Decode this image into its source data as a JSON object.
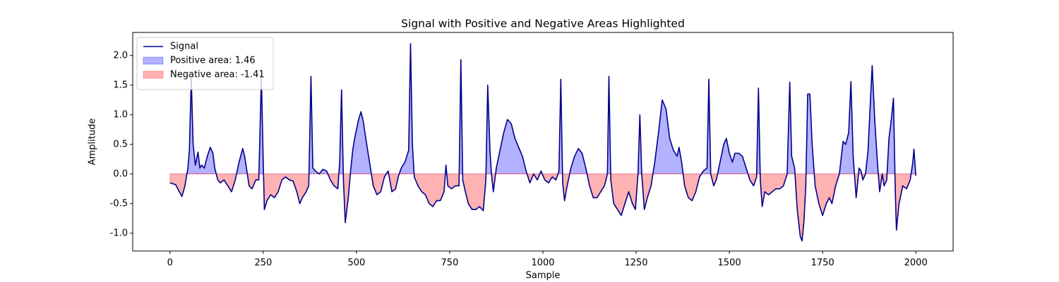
{
  "chart_data": {
    "type": "line",
    "title": "Signal with Positive and Negative Areas Highlighted",
    "x_label": "Sample",
    "y_label": "Amplitude",
    "x": [
      0,
      15,
      25,
      32,
      40,
      48,
      52,
      57,
      62,
      68,
      75,
      80,
      85,
      92,
      100,
      108,
      115,
      120,
      128,
      135,
      145,
      155,
      165,
      175,
      185,
      195,
      200,
      205,
      212,
      220,
      230,
      238,
      245,
      250,
      253,
      260,
      270,
      280,
      290,
      300,
      310,
      320,
      330,
      340,
      348,
      355,
      365,
      372,
      378,
      383,
      390,
      400,
      410,
      420,
      430,
      440,
      450,
      455,
      460,
      465,
      470,
      478,
      485,
      490,
      495,
      505,
      512,
      518,
      525,
      535,
      545,
      555,
      565,
      575,
      585,
      595,
      605,
      612,
      620,
      630,
      640,
      645,
      650,
      655,
      665,
      675,
      685,
      695,
      705,
      715,
      725,
      735,
      740,
      745,
      755,
      765,
      775,
      780,
      785,
      792,
      800,
      810,
      820,
      830,
      840,
      847,
      852,
      858,
      862,
      867,
      875,
      885,
      895,
      905,
      915,
      925,
      935,
      945,
      955,
      965,
      975,
      985,
      995,
      1005,
      1015,
      1025,
      1035,
      1043,
      1048,
      1053,
      1058,
      1065,
      1075,
      1085,
      1095,
      1105,
      1115,
      1125,
      1135,
      1145,
      1155,
      1165,
      1173,
      1177,
      1182,
      1190,
      1200,
      1210,
      1220,
      1230,
      1240,
      1248,
      1255,
      1260,
      1265,
      1272,
      1280,
      1290,
      1300,
      1310,
      1320,
      1330,
      1340,
      1350,
      1360,
      1365,
      1372,
      1380,
      1390,
      1400,
      1410,
      1420,
      1430,
      1440,
      1445,
      1450,
      1458,
      1465,
      1475,
      1485,
      1492,
      1500,
      1508,
      1515,
      1525,
      1535,
      1545,
      1555,
      1565,
      1573,
      1578,
      1583,
      1588,
      1595,
      1605,
      1615,
      1625,
      1635,
      1645,
      1655,
      1662,
      1667,
      1675,
      1682,
      1690,
      1695,
      1700,
      1705,
      1710,
      1716,
      1722,
      1730,
      1740,
      1750,
      1760,
      1768,
      1775,
      1785,
      1795,
      1805,
      1812,
      1820,
      1826,
      1832,
      1840,
      1848,
      1853,
      1858,
      1865,
      1872,
      1878,
      1883,
      1890,
      1897,
      1903,
      1910,
      1915,
      1922,
      1928,
      1935,
      1940,
      1945,
      1948,
      1955,
      1965,
      1975,
      1985,
      1992,
      1995,
      2000
    ],
    "series": [
      {
        "name": "Signal",
        "color": "#00008b",
        "values": [
          -0.15,
          -0.18,
          -0.3,
          -0.38,
          -0.2,
          0.1,
          0.4,
          1.62,
          0.5,
          0.15,
          0.37,
          0.1,
          0.15,
          0.1,
          0.3,
          0.45,
          0.35,
          0.1,
          -0.1,
          -0.15,
          -0.1,
          -0.2,
          -0.3,
          -0.1,
          0.2,
          0.43,
          0.3,
          0.1,
          -0.2,
          -0.25,
          -0.1,
          -0.1,
          1.65,
          0.2,
          -0.6,
          -0.45,
          -0.35,
          -0.4,
          -0.3,
          -0.1,
          -0.05,
          -0.1,
          -0.12,
          -0.3,
          -0.5,
          -0.4,
          -0.3,
          -0.2,
          1.65,
          0.1,
          0.05,
          0.0,
          0.08,
          0.05,
          -0.1,
          -0.2,
          -0.25,
          0.2,
          1.42,
          -0.1,
          -0.82,
          -0.4,
          0.1,
          0.4,
          0.6,
          0.9,
          1.05,
          0.9,
          0.6,
          0.2,
          -0.2,
          -0.35,
          -0.3,
          -0.05,
          0.05,
          -0.3,
          -0.25,
          -0.05,
          0.1,
          0.2,
          0.4,
          2.2,
          0.5,
          -0.05,
          -0.2,
          -0.3,
          -0.35,
          -0.5,
          -0.55,
          -0.45,
          -0.45,
          -0.3,
          0.15,
          -0.2,
          -0.25,
          -0.2,
          -0.2,
          1.93,
          -0.1,
          -0.3,
          -0.5,
          -0.6,
          -0.6,
          -0.55,
          -0.62,
          -0.1,
          1.5,
          0.4,
          0.0,
          -0.3,
          0.1,
          0.4,
          0.7,
          0.92,
          0.85,
          0.6,
          0.45,
          0.3,
          0.05,
          -0.15,
          0.0,
          -0.1,
          0.05,
          -0.1,
          -0.15,
          -0.05,
          -0.1,
          0.05,
          1.6,
          -0.15,
          -0.45,
          -0.2,
          0.1,
          0.3,
          0.43,
          0.35,
          0.1,
          -0.2,
          -0.4,
          -0.4,
          -0.3,
          -0.2,
          0.0,
          1.65,
          -0.1,
          -0.5,
          -0.6,
          -0.7,
          -0.5,
          -0.3,
          -0.5,
          -0.6,
          0.0,
          1.0,
          0.0,
          -0.6,
          -0.4,
          -0.2,
          0.2,
          0.7,
          1.25,
          1.1,
          0.6,
          0.4,
          0.3,
          0.45,
          0.2,
          -0.2,
          -0.4,
          -0.45,
          -0.3,
          -0.05,
          0.05,
          0.1,
          1.6,
          0.0,
          -0.2,
          -0.1,
          0.2,
          0.5,
          0.6,
          0.35,
          0.2,
          0.35,
          0.35,
          0.3,
          0.1,
          -0.1,
          -0.2,
          -0.05,
          1.45,
          -0.1,
          -0.55,
          -0.3,
          -0.35,
          -0.3,
          -0.25,
          -0.25,
          -0.2,
          0.0,
          1.55,
          0.3,
          0.1,
          -0.6,
          -1.05,
          -1.13,
          -0.8,
          -0.2,
          1.35,
          1.35,
          0.5,
          -0.2,
          -0.5,
          -0.7,
          -0.5,
          -0.4,
          -0.5,
          -0.2,
          0.0,
          0.55,
          0.5,
          0.7,
          1.56,
          0.3,
          -0.4,
          0.1,
          0.05,
          -0.1,
          0.0,
          0.4,
          1.2,
          1.83,
          0.9,
          0.2,
          -0.3,
          0.0,
          -0.2,
          -0.1,
          0.6,
          0.95,
          1.28,
          -0.3,
          -0.95,
          -0.5,
          -0.2,
          -0.25,
          -0.1,
          0.2,
          0.42,
          -0.03
        ]
      }
    ],
    "fills": [
      {
        "name": "Positive area: 1.46",
        "color": "#0000ff",
        "where": "above"
      },
      {
        "name": "Negative area: -1.41",
        "color": "#ff0000",
        "where": "below"
      }
    ],
    "xlim": [
      -100,
      2100
    ],
    "ylim": [
      -1.3,
      2.39
    ],
    "xticks": [
      0,
      250,
      500,
      750,
      1000,
      1250,
      1500,
      1750,
      2000
    ],
    "yticks": [
      {
        "value": -1.0,
        "label": "-1.0"
      },
      -0.5,
      {
        "value": 0.0,
        "label": "0.0"
      },
      0.5,
      {
        "value": 1.0,
        "label": "1.0"
      },
      1.5,
      {
        "value": 2.0,
        "label": "2.0"
      }
    ],
    "grid": false,
    "legend": "upper left"
  }
}
